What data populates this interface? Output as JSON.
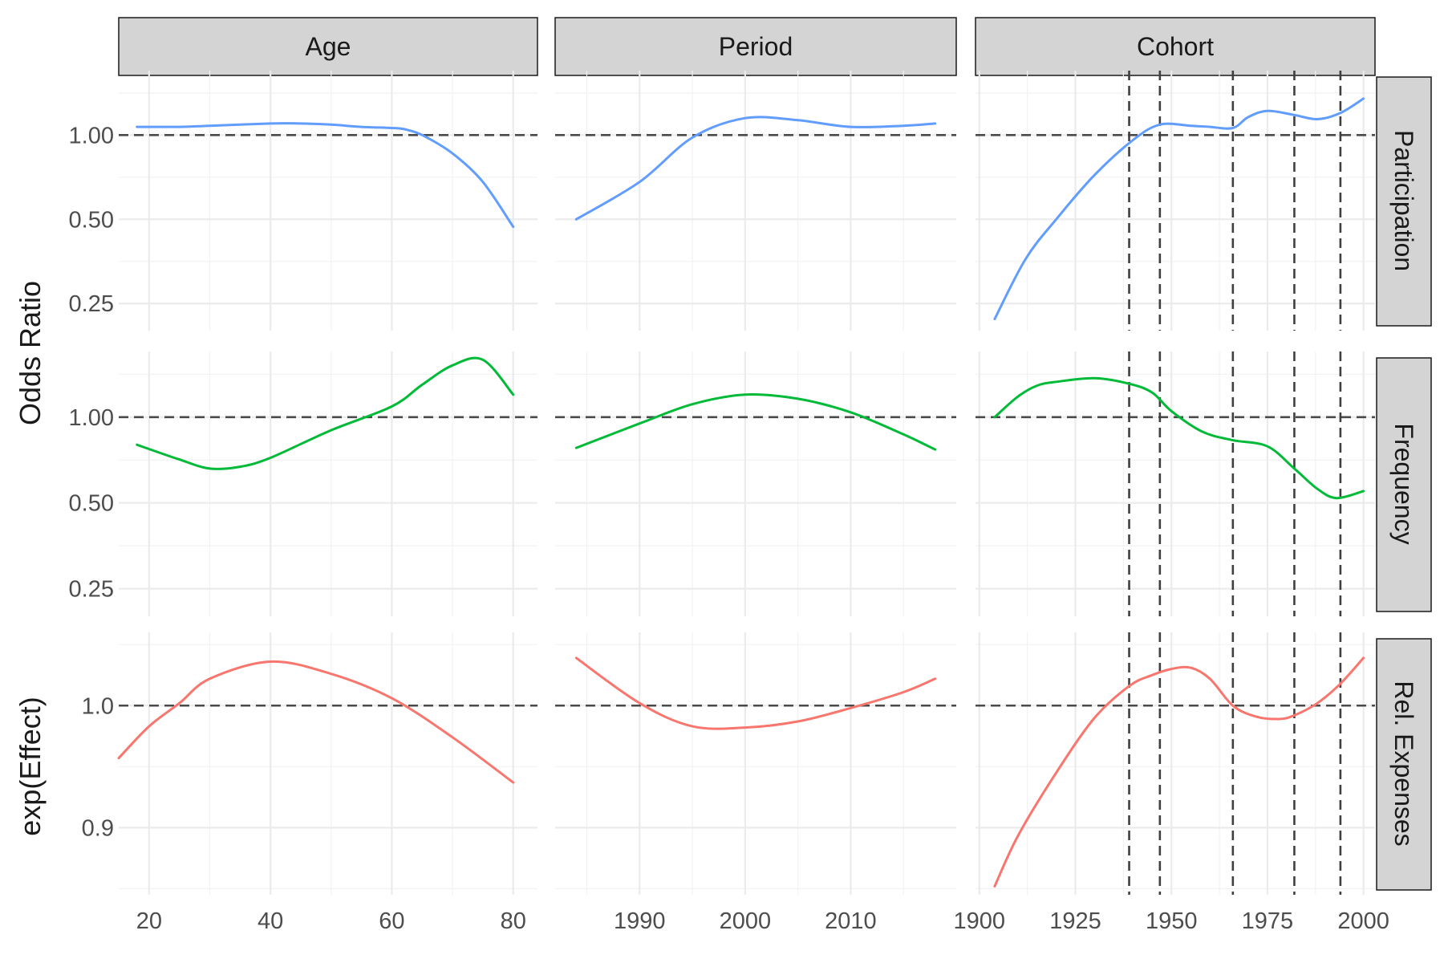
{
  "chart_data": {
    "type": "line",
    "columns": [
      "Age",
      "Period",
      "Cohort"
    ],
    "rows": [
      {
        "label": "Participation",
        "ylabel": "Odds Ratio",
        "color": "#619CFF",
        "scale": "log2",
        "ylim": [
          0.2,
          1.7
        ],
        "yticks": [
          0.25,
          0.5,
          1.0
        ],
        "ytick_labels": [
          "0.25",
          "0.50",
          "1.00"
        ],
        "ref": 1.0
      },
      {
        "label": "Frequency",
        "ylabel": "Odds Ratio",
        "color": "#00BA38",
        "scale": "log2",
        "ylim": [
          0.2,
          1.7
        ],
        "yticks": [
          0.25,
          0.5,
          1.0
        ],
        "ytick_labels": [
          "0.25",
          "0.50",
          "1.00"
        ],
        "ref": 1.0
      },
      {
        "label": "Rel. Expenses",
        "ylabel": "exp(Effect)",
        "color": "#F8766D",
        "scale": "linear",
        "ylim": [
          0.845,
          1.06
        ],
        "yticks": [
          0.9,
          1.0
        ],
        "ytick_labels": [
          "0.9",
          "1.0"
        ],
        "ref": 1.0
      }
    ],
    "xaxes": {
      "Age": {
        "xlim": [
          15,
          84
        ],
        "ticks": [
          20,
          40,
          60,
          80
        ],
        "tick_labels": [
          "20",
          "40",
          "60",
          "80"
        ],
        "minor": [
          30,
          50,
          70
        ]
      },
      "Period": {
        "xlim": [
          1982,
          2020
        ],
        "ticks": [
          1990,
          2000,
          2010
        ],
        "tick_labels": [
          "1990",
          "2000",
          "2010"
        ],
        "minor": [
          1985,
          1995,
          2005,
          2015
        ]
      },
      "Cohort": {
        "xlim": [
          1899,
          2003
        ],
        "ticks": [
          1900,
          1925,
          1950,
          1975,
          2000
        ],
        "tick_labels": [
          "1900",
          "1925",
          "1950",
          "1975",
          "2000"
        ],
        "minor": [
          1912.5,
          1937.5,
          1962.5,
          1987.5
        ]
      }
    },
    "cohort_vlines": [
      1939,
      1947,
      1966,
      1982,
      1994
    ],
    "series": [
      {
        "row": "Participation",
        "column": "Age",
        "x": [
          18,
          25,
          30,
          40,
          45,
          50,
          55,
          60,
          62,
          65,
          70,
          75,
          80
        ],
        "y": [
          1.07,
          1.07,
          1.08,
          1.1,
          1.1,
          1.09,
          1.07,
          1.06,
          1.05,
          1.0,
          0.86,
          0.68,
          0.47
        ]
      },
      {
        "row": "Participation",
        "column": "Period",
        "x": [
          1984,
          1990,
          1995,
          2000,
          2005,
          2010,
          2015,
          2018
        ],
        "y": [
          0.5,
          0.68,
          0.98,
          1.15,
          1.13,
          1.07,
          1.08,
          1.1
        ]
      },
      {
        "row": "Participation",
        "column": "Cohort",
        "x": [
          1904,
          1912,
          1920,
          1930,
          1940,
          1947,
          1955,
          1960,
          1966,
          1970,
          1975,
          1982,
          1988,
          1994,
          2000
        ],
        "y": [
          0.22,
          0.36,
          0.5,
          0.72,
          0.96,
          1.09,
          1.08,
          1.07,
          1.06,
          1.16,
          1.22,
          1.18,
          1.14,
          1.2,
          1.35
        ]
      },
      {
        "row": "Frequency",
        "column": "Age",
        "x": [
          18,
          25,
          30,
          35,
          40,
          50,
          60,
          65,
          70,
          75,
          80
        ],
        "y": [
          0.8,
          0.71,
          0.66,
          0.67,
          0.72,
          0.9,
          1.09,
          1.3,
          1.52,
          1.59,
          1.2
        ]
      },
      {
        "row": "Frequency",
        "column": "Period",
        "x": [
          1984,
          1990,
          1995,
          2000,
          2005,
          2010,
          2015,
          2018
        ],
        "y": [
          0.78,
          0.95,
          1.11,
          1.2,
          1.16,
          1.04,
          0.87,
          0.77
        ]
      },
      {
        "row": "Frequency",
        "column": "Cohort",
        "x": [
          1904,
          1910,
          1915,
          1920,
          1930,
          1939,
          1945,
          1950,
          1958,
          1966,
          1975,
          1982,
          1988,
          1993,
          2000
        ],
        "y": [
          1.0,
          1.18,
          1.29,
          1.33,
          1.37,
          1.31,
          1.22,
          1.05,
          0.89,
          0.83,
          0.79,
          0.66,
          0.56,
          0.52,
          0.55
        ]
      },
      {
        "row": "Rel. Expenses",
        "column": "Age",
        "x": [
          15,
          20,
          25,
          30,
          40,
          50,
          60,
          70,
          80
        ],
        "y": [
          0.957,
          0.983,
          1.002,
          1.022,
          1.036,
          1.026,
          1.006,
          0.974,
          0.937
        ]
      },
      {
        "row": "Rel. Expenses",
        "column": "Period",
        "x": [
          1984,
          1990,
          1995,
          2000,
          2005,
          2010,
          2015,
          2018
        ],
        "y": [
          1.039,
          1.002,
          0.983,
          0.982,
          0.987,
          0.998,
          1.011,
          1.022
        ]
      },
      {
        "row": "Rel. Expenses",
        "column": "Cohort",
        "x": [
          1904,
          1910,
          1920,
          1930,
          1939,
          1945,
          1950,
          1955,
          1960,
          1966,
          1972,
          1978,
          1982,
          1988,
          1994,
          2000
        ],
        "y": [
          0.852,
          0.893,
          0.945,
          0.99,
          1.016,
          1.025,
          1.03,
          1.031,
          1.022,
          1.0,
          0.991,
          0.989,
          0.992,
          1.002,
          1.018,
          1.039
        ]
      }
    ],
    "grid": true,
    "legend": "none"
  }
}
